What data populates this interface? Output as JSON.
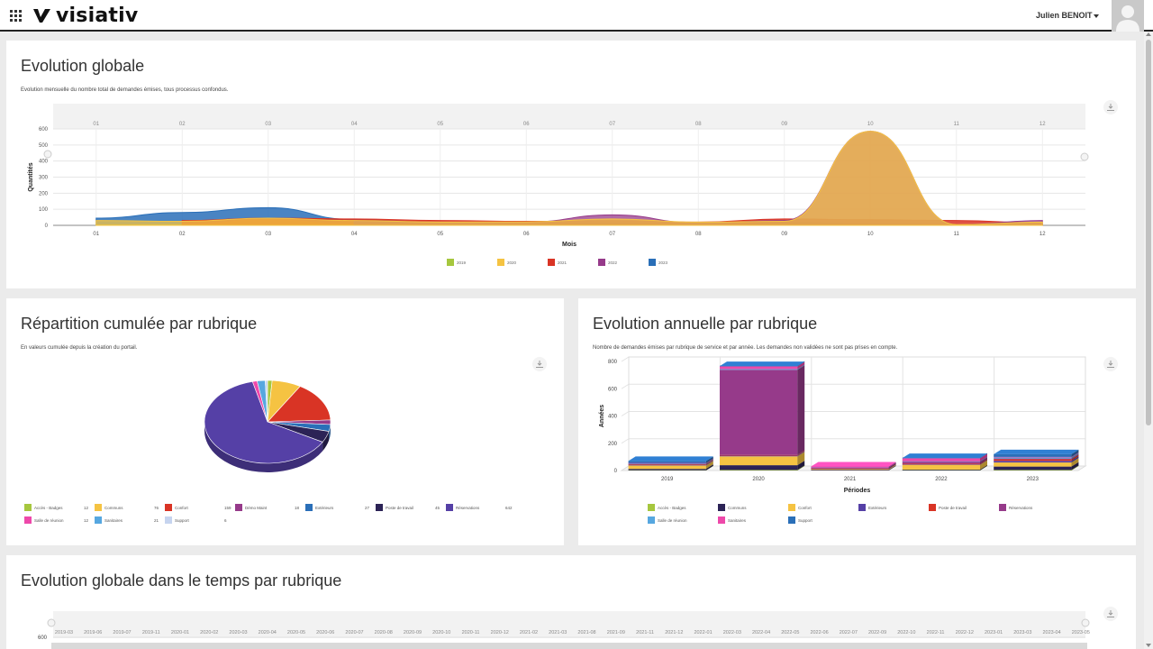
{
  "header": {
    "logo_text": "visiativ",
    "user_name": "Julien BENOIT"
  },
  "panels": {
    "evolution_globale": {
      "title": "Evolution globale",
      "subtitle": "Evolution mensuelle du nombre total de demandes émises, tous processus confondus."
    },
    "repartition": {
      "title": "Répartition cumulée par rubrique",
      "subtitle": "En valeurs cumulée depuis la création du portail."
    },
    "annuelle": {
      "title": "Evolution annuelle par rubrique",
      "subtitle": "Nombre de demandes émises par rubrique de service et par année. Les demandes non validées ne sont pas prises en compte."
    },
    "temps": {
      "title": "Evolution globale dans le temps par rubrique"
    }
  },
  "chart_data": [
    {
      "type": "area",
      "xlabel": "Mois",
      "ylabel": "Quantités",
      "categories": [
        "01",
        "02",
        "03",
        "04",
        "05",
        "06",
        "07",
        "08",
        "09",
        "10",
        "11",
        "12"
      ],
      "ylim": [
        0,
        600
      ],
      "yticks": [
        0,
        100,
        200,
        300,
        400,
        500,
        600
      ],
      "legend_position": "bottom",
      "series": [
        {
          "name": "2019",
          "color": "#a6c73e",
          "values": [
            2,
            3,
            35,
            6,
            4,
            3,
            4,
            3,
            3,
            3,
            2,
            2
          ]
        },
        {
          "name": "2020",
          "color": "#f5c342",
          "values": [
            30,
            25,
            45,
            30,
            20,
            22,
            40,
            20,
            25,
            585,
            5,
            20
          ]
        },
        {
          "name": "2021",
          "color": "#d93425",
          "values": [
            null,
            30,
            45,
            40,
            30,
            25,
            30,
            20,
            40,
            35,
            30,
            15
          ]
        },
        {
          "name": "2022",
          "color": "#963a8a",
          "values": [
            null,
            null,
            null,
            25,
            15,
            20,
            65,
            15,
            30,
            585,
            5,
            30
          ]
        },
        {
          "name": "2023",
          "color": "#2a6fb8",
          "values": [
            45,
            80,
            110,
            35,
            20,
            10,
            15,
            10,
            20,
            10,
            5,
            10
          ]
        }
      ]
    },
    {
      "type": "pie",
      "slices": [
        {
          "label": "Accès - Badges",
          "value": 12,
          "color": "#a6c73e"
        },
        {
          "label": "Communs",
          "value": 76,
          "color": "#f5c342"
        },
        {
          "label": "Confort",
          "value": 159,
          "color": "#d93425"
        },
        {
          "label": "Démo Maint",
          "value": 18,
          "color": "#963a8a"
        },
        {
          "label": "Extérieurs",
          "value": 27,
          "color": "#2a6fb8"
        },
        {
          "label": "Poste de travail",
          "value": 45,
          "color": "#2c2356"
        },
        {
          "label": "Réservations",
          "value": 642,
          "color": "#5540a6"
        },
        {
          "label": "Salle de réunion",
          "value": 12,
          "color": "#ee48aa"
        },
        {
          "label": "Sanitaires",
          "value": 21,
          "color": "#56a7e0"
        },
        {
          "label": "Support",
          "value": 6,
          "color": "#c6d4ef"
        }
      ],
      "legend_position": "bottom"
    },
    {
      "type": "bar",
      "stacked": true,
      "categories": [
        "2019",
        "2020",
        "2021",
        "2022",
        "2023"
      ],
      "xlabel": "Périodes",
      "ylabel": "Années",
      "ylim": [
        0,
        800
      ],
      "yticks": [
        0,
        200,
        400,
        600,
        800
      ],
      "legend_position": "bottom",
      "series": [
        {
          "name": "Accès - Badges",
          "color": "#a6c73e",
          "values": [
            2,
            4,
            0,
            2,
            4
          ]
        },
        {
          "name": "Communs",
          "color": "#2c2356",
          "values": [
            10,
            35,
            5,
            5,
            25
          ]
        },
        {
          "name": "Confort",
          "color": "#f5c342",
          "values": [
            25,
            65,
            6,
            35,
            30
          ]
        },
        {
          "name": "Extérieurs",
          "color": "#5540a6",
          "values": [
            5,
            5,
            1,
            3,
            12
          ]
        },
        {
          "name": "Poste de travail",
          "color": "#d93425",
          "values": [
            5,
            5,
            2,
            5,
            12
          ]
        },
        {
          "name": "Réservations",
          "color": "#963a8a",
          "values": [
            3,
            625,
            8,
            15,
            5
          ]
        },
        {
          "name": "Salle de réunion",
          "color": "#56a7e0",
          "values": [
            3,
            5,
            1,
            3,
            8
          ]
        },
        {
          "name": "Sanitaires",
          "color": "#ee48aa",
          "values": [
            2,
            20,
            7,
            22,
            4
          ]
        },
        {
          "name": "Support",
          "color": "#2a6fb8",
          "values": [
            15,
            2,
            0,
            2,
            20
          ]
        }
      ]
    },
    {
      "type": "area",
      "ylim_top_tick": "600",
      "categories": [
        "2019-03",
        "2019-06",
        "2019-07",
        "2019-11",
        "2020-01",
        "2020-02",
        "2020-03",
        "2020-04",
        "2020-05",
        "2020-06",
        "2020-07",
        "2020-08",
        "2020-09",
        "2020-10",
        "2020-11",
        "2020-12",
        "2021-02",
        "2021-03",
        "2021-08",
        "2021-09",
        "2021-11",
        "2021-12",
        "2022-01",
        "2022-03",
        "2022-04",
        "2022-05",
        "2022-06",
        "2022-07",
        "2022-09",
        "2022-10",
        "2022-11",
        "2022-12",
        "2023-01",
        "2023-03",
        "2023-04",
        "2023-05"
      ]
    }
  ]
}
